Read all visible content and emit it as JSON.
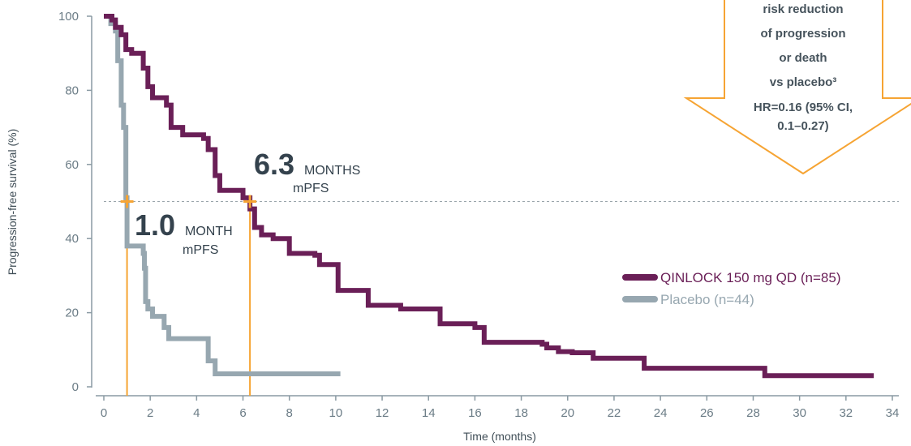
{
  "chart_data": {
    "type": "line",
    "title": "",
    "xlabel": "Time (months)",
    "ylabel": "Progression-free survival (%)",
    "xlim": [
      0,
      34
    ],
    "ylim": [
      0,
      100
    ],
    "x_ticks": [
      "0",
      "2",
      "4",
      "6",
      "8",
      "10",
      "12",
      "14",
      "16",
      "18",
      "20",
      "22",
      "24",
      "26",
      "28",
      "30",
      "32",
      "34"
    ],
    "y_ticks": [
      "0",
      "20",
      "40",
      "60",
      "80",
      "100"
    ],
    "reference_line_y": 50,
    "series": [
      {
        "name": "QINLOCK 150 mg QD (n=85)",
        "color": "#6a1f57",
        "x": [
          0,
          0.2,
          0.35,
          0.5,
          0.75,
          0.95,
          1.2,
          1.7,
          1.9,
          2.1,
          2.7,
          2.9,
          3.4,
          4.3,
          4.5,
          4.8,
          5.0,
          6.0,
          6.3,
          6.5,
          6.8,
          7.3,
          8.0,
          9.1,
          9.3,
          10.1,
          11.4,
          12.8,
          14.5,
          16.0,
          16.4,
          17.2,
          18.9,
          19.1,
          19.6,
          20.2,
          21.1,
          21.9,
          23.3,
          28.5,
          33.2
        ],
        "y": [
          100,
          100,
          99,
          97,
          95,
          91,
          90,
          86,
          81,
          78,
          76,
          70,
          68,
          67,
          64,
          57,
          53,
          51,
          48,
          43,
          41,
          40,
          36,
          35.5,
          33,
          26,
          22,
          21,
          17,
          16,
          12,
          12,
          11.5,
          10.5,
          9.5,
          9.2,
          7.7,
          7.7,
          5,
          3,
          3
        ]
      },
      {
        "name": "Placebo (n=44)",
        "color": "#97a7b0",
        "x": [
          0,
          0.3,
          0.5,
          0.6,
          0.75,
          0.85,
          0.95,
          1.0,
          1.7,
          1.75,
          1.8,
          1.9,
          2.1,
          2.6,
          2.8,
          4.5,
          4.8,
          10.2
        ],
        "y": [
          100,
          98,
          96,
          88,
          76,
          70,
          51,
          38,
          36,
          32,
          23,
          21,
          19,
          16,
          13,
          7,
          3.5,
          3.5
        ]
      }
    ],
    "median_markers": [
      {
        "x": 1.0,
        "y": 50,
        "value": "1.0",
        "unit": "MONTH",
        "label": "mPFS"
      },
      {
        "x": 6.3,
        "y": 50,
        "value": "6.3",
        "unit": "MONTHS",
        "label": "mPFS"
      }
    ],
    "callout": {
      "lines": [
        "risk reduction",
        "of progression",
        "or death",
        "vs placebo³"
      ],
      "hr_lines": [
        "HR=0.16 (95% CI,",
        "0.1–0.27)"
      ]
    },
    "legend_position": "right"
  }
}
